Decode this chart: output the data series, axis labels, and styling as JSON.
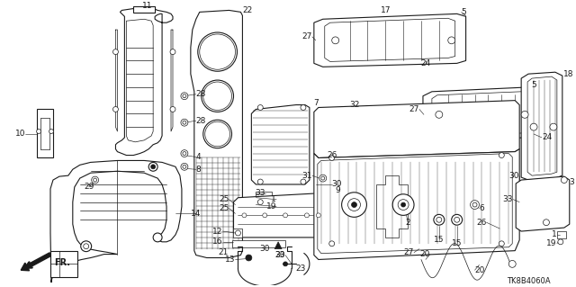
{
  "background_color": "#ffffff",
  "line_color": "#1a1a1a",
  "diagram_code": "TK8B4060A",
  "figsize": [
    6.4,
    3.19
  ],
  "dpi": 100,
  "diagram_text_fontsize": 6,
  "label_fontsize": 6.5
}
